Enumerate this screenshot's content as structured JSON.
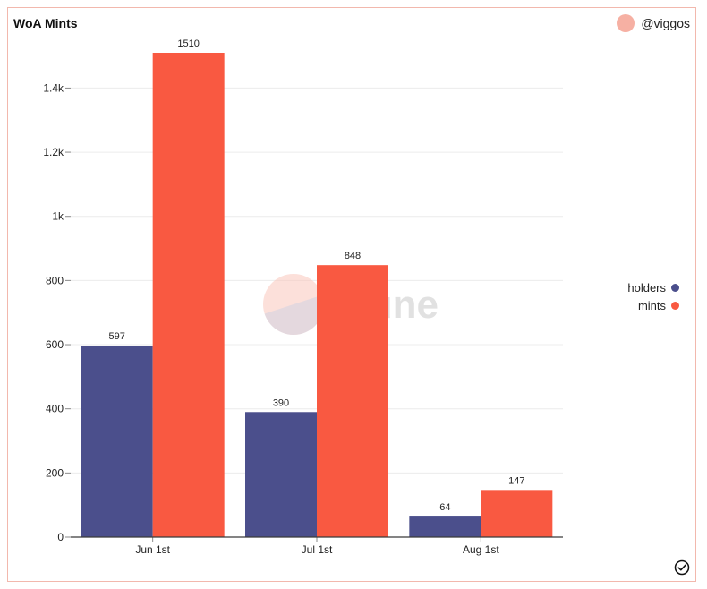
{
  "title": "WoA Mints",
  "owner": "@viggos",
  "watermark": "Dune",
  "colors": {
    "holders": "#4b4f8c",
    "mints": "#f95941",
    "avatar": "#f6b0a3"
  },
  "icons": {
    "avatar": "avatar-circle",
    "status": "check-circle-icon"
  },
  "chart_data": {
    "type": "bar",
    "categories": [
      "Jun 1st",
      "Jul 1st",
      "Aug 1st"
    ],
    "series": [
      {
        "name": "holders",
        "values": [
          597,
          390,
          64
        ],
        "color": "#4b4f8c"
      },
      {
        "name": "mints",
        "values": [
          1510,
          848,
          147
        ],
        "color": "#f95941"
      }
    ],
    "ylim": [
      0,
      1510
    ],
    "yticks": [
      0,
      200,
      400,
      600,
      800,
      1000,
      1200,
      1400
    ],
    "ytick_labels": [
      "0",
      "200",
      "400",
      "600",
      "800",
      "1k",
      "1.2k",
      "1.4k"
    ],
    "grid": true,
    "legend_position": "right"
  }
}
